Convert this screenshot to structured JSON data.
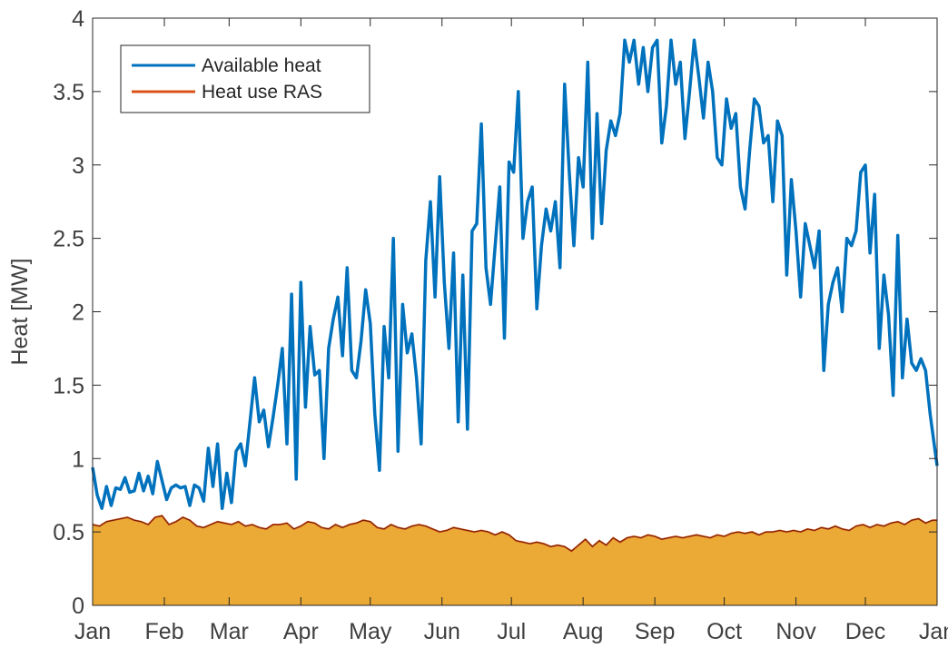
{
  "chart_data": {
    "type": "line",
    "title": "",
    "xlabel": "",
    "ylabel": "Heat [MW]",
    "ylim": [
      0,
      4
    ],
    "xlim": [
      0,
      365
    ],
    "y_ticks": [
      "0",
      "0.5",
      "1",
      "1.5",
      "2",
      "2.5",
      "3",
      "3.5",
      "4"
    ],
    "x_ticks": [
      {
        "label": "Jan",
        "day": 0
      },
      {
        "label": "Feb",
        "day": 31
      },
      {
        "label": "Mar",
        "day": 59
      },
      {
        "label": "Apr",
        "day": 90
      },
      {
        "label": "May",
        "day": 120
      },
      {
        "label": "Jun",
        "day": 151
      },
      {
        "label": "Jul",
        "day": 181
      },
      {
        "label": "Aug",
        "day": 212
      },
      {
        "label": "Sep",
        "day": 243
      },
      {
        "label": "Oct",
        "day": 273
      },
      {
        "label": "Nov",
        "day": 304
      },
      {
        "label": "Dec",
        "day": 334
      },
      {
        "label": "Jan",
        "day": 365
      }
    ],
    "grid": false,
    "legend_position": "top-left",
    "series": [
      {
        "name": "Available heat",
        "color": "#0072BD",
        "style": "line",
        "points": [
          [
            0,
            0.94
          ],
          [
            2,
            0.75
          ],
          [
            4,
            0.66
          ],
          [
            6,
            0.81
          ],
          [
            8,
            0.68
          ],
          [
            10,
            0.8
          ],
          [
            12,
            0.79
          ],
          [
            14,
            0.87
          ],
          [
            16,
            0.77
          ],
          [
            18,
            0.78
          ],
          [
            20,
            0.9
          ],
          [
            22,
            0.78
          ],
          [
            24,
            0.88
          ],
          [
            26,
            0.76
          ],
          [
            28,
            0.98
          ],
          [
            30,
            0.85
          ],
          [
            32,
            0.72
          ],
          [
            34,
            0.8
          ],
          [
            36,
            0.82
          ],
          [
            38,
            0.8
          ],
          [
            40,
            0.81
          ],
          [
            42,
            0.68
          ],
          [
            44,
            0.82
          ],
          [
            46,
            0.8
          ],
          [
            48,
            0.71
          ],
          [
            50,
            1.07
          ],
          [
            52,
            0.81
          ],
          [
            54,
            1.1
          ],
          [
            56,
            0.66
          ],
          [
            58,
            0.9
          ],
          [
            60,
            0.7
          ],
          [
            62,
            1.05
          ],
          [
            64,
            1.1
          ],
          [
            66,
            0.95
          ],
          [
            68,
            1.25
          ],
          [
            70,
            1.55
          ],
          [
            72,
            1.25
          ],
          [
            74,
            1.33
          ],
          [
            76,
            1.08
          ],
          [
            78,
            1.28
          ],
          [
            80,
            1.5
          ],
          [
            82,
            1.75
          ],
          [
            84,
            1.1
          ],
          [
            86,
            2.12
          ],
          [
            88,
            0.86
          ],
          [
            90,
            2.2
          ],
          [
            92,
            1.35
          ],
          [
            94,
            1.9
          ],
          [
            96,
            1.57
          ],
          [
            98,
            1.6
          ],
          [
            100,
            1.0
          ],
          [
            102,
            1.75
          ],
          [
            104,
            1.95
          ],
          [
            106,
            2.1
          ],
          [
            108,
            1.7
          ],
          [
            110,
            2.3
          ],
          [
            112,
            1.6
          ],
          [
            114,
            1.55
          ],
          [
            116,
            1.8
          ],
          [
            118,
            2.15
          ],
          [
            120,
            1.92
          ],
          [
            122,
            1.3
          ],
          [
            124,
            0.92
          ],
          [
            126,
            1.9
          ],
          [
            128,
            1.55
          ],
          [
            130,
            2.5
          ],
          [
            132,
            1.05
          ],
          [
            134,
            2.05
          ],
          [
            136,
            1.72
          ],
          [
            138,
            1.85
          ],
          [
            140,
            1.55
          ],
          [
            142,
            1.1
          ],
          [
            144,
            2.35
          ],
          [
            146,
            2.75
          ],
          [
            148,
            2.1
          ],
          [
            150,
            2.92
          ],
          [
            152,
            2.2
          ],
          [
            154,
            1.75
          ],
          [
            156,
            2.4
          ],
          [
            158,
            1.25
          ],
          [
            160,
            2.25
          ],
          [
            162,
            1.2
          ],
          [
            164,
            2.55
          ],
          [
            166,
            2.6
          ],
          [
            168,
            3.28
          ],
          [
            170,
            2.3
          ],
          [
            172,
            2.05
          ],
          [
            174,
            2.45
          ],
          [
            176,
            2.85
          ],
          [
            178,
            1.82
          ],
          [
            180,
            3.02
          ],
          [
            182,
            2.95
          ],
          [
            184,
            3.5
          ],
          [
            186,
            2.5
          ],
          [
            188,
            2.75
          ],
          [
            190,
            2.85
          ],
          [
            192,
            2.02
          ],
          [
            194,
            2.45
          ],
          [
            196,
            2.7
          ],
          [
            198,
            2.55
          ],
          [
            200,
            2.75
          ],
          [
            202,
            2.3
          ],
          [
            204,
            3.55
          ],
          [
            206,
            2.95
          ],
          [
            208,
            2.45
          ],
          [
            210,
            3.05
          ],
          [
            212,
            2.85
          ],
          [
            214,
            3.7
          ],
          [
            216,
            2.5
          ],
          [
            218,
            3.35
          ],
          [
            220,
            2.6
          ],
          [
            222,
            3.1
          ],
          [
            224,
            3.3
          ],
          [
            226,
            3.2
          ],
          [
            228,
            3.35
          ],
          [
            230,
            3.85
          ],
          [
            232,
            3.7
          ],
          [
            234,
            3.85
          ],
          [
            236,
            3.55
          ],
          [
            238,
            3.8
          ],
          [
            240,
            3.5
          ],
          [
            242,
            3.8
          ],
          [
            244,
            3.85
          ],
          [
            246,
            3.15
          ],
          [
            248,
            3.4
          ],
          [
            250,
            3.85
          ],
          [
            252,
            3.55
          ],
          [
            254,
            3.7
          ],
          [
            256,
            3.18
          ],
          [
            258,
            3.5
          ],
          [
            260,
            3.85
          ],
          [
            262,
            3.6
          ],
          [
            264,
            3.32
          ],
          [
            266,
            3.7
          ],
          [
            268,
            3.5
          ],
          [
            270,
            3.05
          ],
          [
            272,
            3.0
          ],
          [
            274,
            3.45
          ],
          [
            276,
            3.25
          ],
          [
            278,
            3.35
          ],
          [
            280,
            2.85
          ],
          [
            282,
            2.7
          ],
          [
            284,
            3.1
          ],
          [
            286,
            3.45
          ],
          [
            288,
            3.4
          ],
          [
            290,
            3.15
          ],
          [
            292,
            3.2
          ],
          [
            294,
            2.75
          ],
          [
            296,
            3.3
          ],
          [
            298,
            3.2
          ],
          [
            300,
            2.25
          ],
          [
            302,
            2.9
          ],
          [
            304,
            2.55
          ],
          [
            306,
            2.1
          ],
          [
            308,
            2.6
          ],
          [
            310,
            2.45
          ],
          [
            312,
            2.3
          ],
          [
            314,
            2.55
          ],
          [
            316,
            1.6
          ],
          [
            318,
            2.05
          ],
          [
            320,
            2.2
          ],
          [
            322,
            2.3
          ],
          [
            324,
            2.0
          ],
          [
            326,
            2.5
          ],
          [
            328,
            2.45
          ],
          [
            330,
            2.55
          ],
          [
            332,
            2.95
          ],
          [
            334,
            3.0
          ],
          [
            336,
            2.4
          ],
          [
            338,
            2.8
          ],
          [
            340,
            1.75
          ],
          [
            342,
            2.25
          ],
          [
            344,
            1.98
          ],
          [
            346,
            1.43
          ],
          [
            348,
            2.52
          ],
          [
            350,
            1.55
          ],
          [
            352,
            1.95
          ],
          [
            354,
            1.65
          ],
          [
            356,
            1.6
          ],
          [
            358,
            1.68
          ],
          [
            360,
            1.6
          ],
          [
            362,
            1.3
          ],
          [
            365,
            0.95
          ]
        ]
      },
      {
        "name": "Heat use RAS",
        "color": "#D95319",
        "fill": "#EAAA35",
        "style": "area",
        "points": [
          [
            0,
            0.55
          ],
          [
            3,
            0.54
          ],
          [
            6,
            0.57
          ],
          [
            9,
            0.58
          ],
          [
            12,
            0.59
          ],
          [
            15,
            0.6
          ],
          [
            18,
            0.58
          ],
          [
            21,
            0.57
          ],
          [
            24,
            0.55
          ],
          [
            27,
            0.6
          ],
          [
            30,
            0.61
          ],
          [
            33,
            0.55
          ],
          [
            36,
            0.57
          ],
          [
            39,
            0.6
          ],
          [
            42,
            0.58
          ],
          [
            45,
            0.54
          ],
          [
            48,
            0.53
          ],
          [
            51,
            0.55
          ],
          [
            54,
            0.57
          ],
          [
            57,
            0.56
          ],
          [
            60,
            0.55
          ],
          [
            63,
            0.57
          ],
          [
            66,
            0.54
          ],
          [
            69,
            0.55
          ],
          [
            72,
            0.53
          ],
          [
            75,
            0.52
          ],
          [
            78,
            0.55
          ],
          [
            81,
            0.55
          ],
          [
            84,
            0.56
          ],
          [
            87,
            0.52
          ],
          [
            90,
            0.54
          ],
          [
            93,
            0.57
          ],
          [
            96,
            0.56
          ],
          [
            99,
            0.53
          ],
          [
            102,
            0.52
          ],
          [
            105,
            0.55
          ],
          [
            108,
            0.53
          ],
          [
            111,
            0.55
          ],
          [
            114,
            0.56
          ],
          [
            117,
            0.58
          ],
          [
            120,
            0.57
          ],
          [
            123,
            0.53
          ],
          [
            126,
            0.52
          ],
          [
            129,
            0.55
          ],
          [
            132,
            0.53
          ],
          [
            135,
            0.52
          ],
          [
            138,
            0.54
          ],
          [
            141,
            0.55
          ],
          [
            144,
            0.54
          ],
          [
            147,
            0.52
          ],
          [
            150,
            0.5
          ],
          [
            153,
            0.51
          ],
          [
            156,
            0.53
          ],
          [
            159,
            0.52
          ],
          [
            162,
            0.51
          ],
          [
            165,
            0.5
          ],
          [
            168,
            0.51
          ],
          [
            171,
            0.5
          ],
          [
            174,
            0.48
          ],
          [
            177,
            0.5
          ],
          [
            180,
            0.48
          ],
          [
            183,
            0.44
          ],
          [
            186,
            0.43
          ],
          [
            189,
            0.42
          ],
          [
            192,
            0.43
          ],
          [
            195,
            0.42
          ],
          [
            198,
            0.4
          ],
          [
            201,
            0.41
          ],
          [
            204,
            0.4
          ],
          [
            207,
            0.37
          ],
          [
            210,
            0.41
          ],
          [
            213,
            0.45
          ],
          [
            216,
            0.4
          ],
          [
            219,
            0.44
          ],
          [
            222,
            0.41
          ],
          [
            225,
            0.46
          ],
          [
            228,
            0.43
          ],
          [
            231,
            0.46
          ],
          [
            234,
            0.47
          ],
          [
            237,
            0.46
          ],
          [
            240,
            0.48
          ],
          [
            243,
            0.47
          ],
          [
            246,
            0.45
          ],
          [
            249,
            0.46
          ],
          [
            252,
            0.47
          ],
          [
            255,
            0.46
          ],
          [
            258,
            0.47
          ],
          [
            261,
            0.48
          ],
          [
            264,
            0.47
          ],
          [
            267,
            0.46
          ],
          [
            270,
            0.48
          ],
          [
            273,
            0.47
          ],
          [
            276,
            0.49
          ],
          [
            279,
            0.5
          ],
          [
            282,
            0.49
          ],
          [
            285,
            0.5
          ],
          [
            288,
            0.48
          ],
          [
            291,
            0.5
          ],
          [
            294,
            0.5
          ],
          [
            297,
            0.51
          ],
          [
            300,
            0.5
          ],
          [
            303,
            0.51
          ],
          [
            306,
            0.5
          ],
          [
            309,
            0.52
          ],
          [
            312,
            0.51
          ],
          [
            315,
            0.53
          ],
          [
            318,
            0.52
          ],
          [
            321,
            0.54
          ],
          [
            324,
            0.52
          ],
          [
            327,
            0.51
          ],
          [
            330,
            0.54
          ],
          [
            333,
            0.55
          ],
          [
            336,
            0.53
          ],
          [
            339,
            0.55
          ],
          [
            342,
            0.54
          ],
          [
            345,
            0.56
          ],
          [
            348,
            0.57
          ],
          [
            351,
            0.55
          ],
          [
            354,
            0.58
          ],
          [
            357,
            0.59
          ],
          [
            360,
            0.56
          ],
          [
            363,
            0.58
          ],
          [
            365,
            0.58
          ]
        ]
      }
    ]
  }
}
